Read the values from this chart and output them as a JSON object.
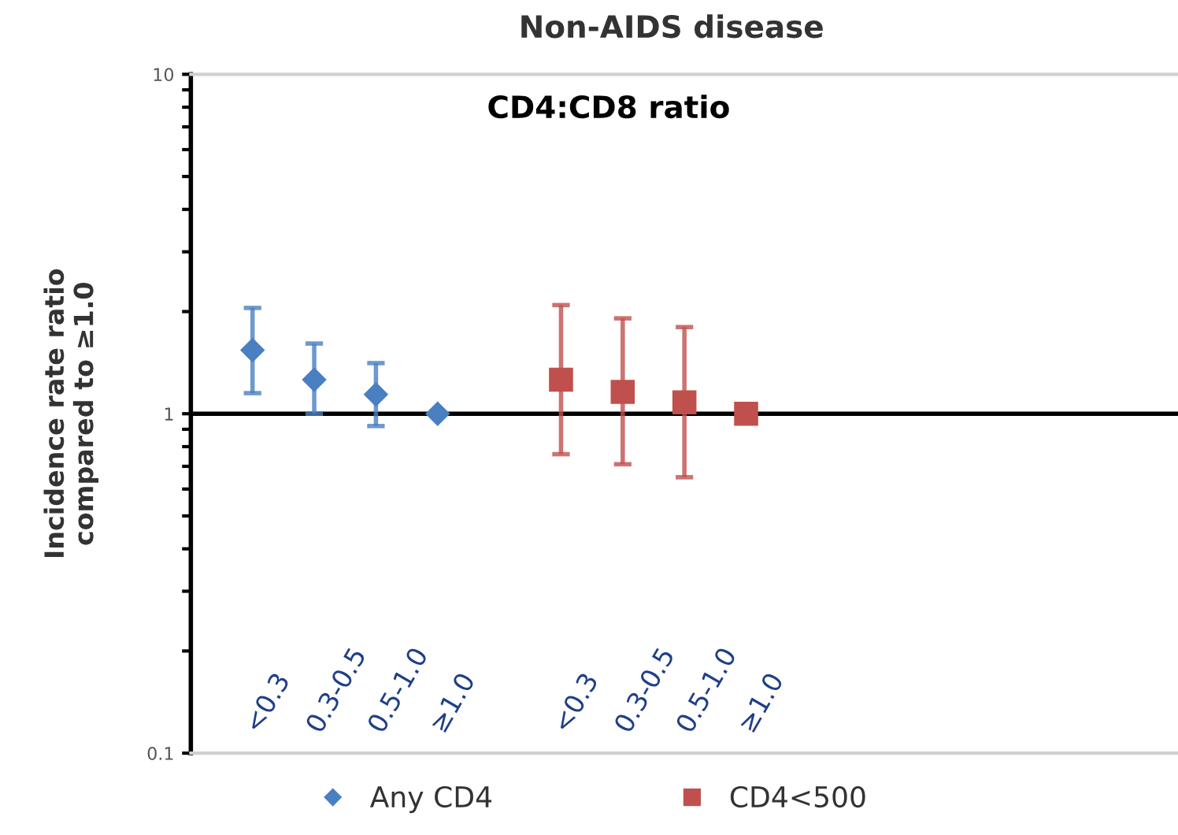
{
  "chart_data": {
    "type": "scatter",
    "title": "Non-AIDS disease",
    "subtitle": "CD4:CD8 ratio",
    "ylabel": "Incidence rate ratio\ncompared to ≥1.0",
    "categories": [
      "<0.3",
      "0.3-0.5",
      "0.5-1.0",
      "≥1.0",
      null,
      "<0.3",
      "0.3-0.5",
      "0.5-1.0",
      "≥1.0",
      null,
      null,
      null,
      null,
      null,
      null
    ],
    "series": [
      {
        "name": "Any CD4",
        "color": "#4a7fc1",
        "marker": "diamond",
        "values": [
          1.54,
          1.26,
          1.14,
          1.0,
          null,
          null,
          null,
          null,
          null,
          null,
          null,
          null,
          null,
          null,
          null
        ],
        "errors": [
          [
            1.15,
            2.05
          ],
          [
            1.0,
            1.61
          ],
          [
            0.92,
            1.41
          ],
          null,
          null,
          null,
          null,
          null,
          null,
          null,
          null,
          null,
          null,
          null,
          null
        ]
      },
      {
        "name": "CD4<500",
        "color": "#c0504d",
        "marker": "square",
        "values": [
          null,
          null,
          null,
          null,
          null,
          1.26,
          1.16,
          1.08,
          1.0,
          null,
          null,
          null,
          null,
          null,
          null
        ],
        "errors": [
          null,
          null,
          null,
          null,
          null,
          [
            0.76,
            2.09
          ],
          [
            0.71,
            1.91
          ],
          [
            0.65,
            1.8
          ],
          null,
          null,
          null,
          null,
          null,
          null,
          null
        ]
      }
    ],
    "log": "y",
    "ylim": [
      0.1,
      10
    ],
    "yticks": [
      0.1,
      1,
      10
    ],
    "legend": "bottom",
    "ref_lines": [
      {
        "axis": "y",
        "value": 1,
        "color": "#000000"
      }
    ]
  }
}
